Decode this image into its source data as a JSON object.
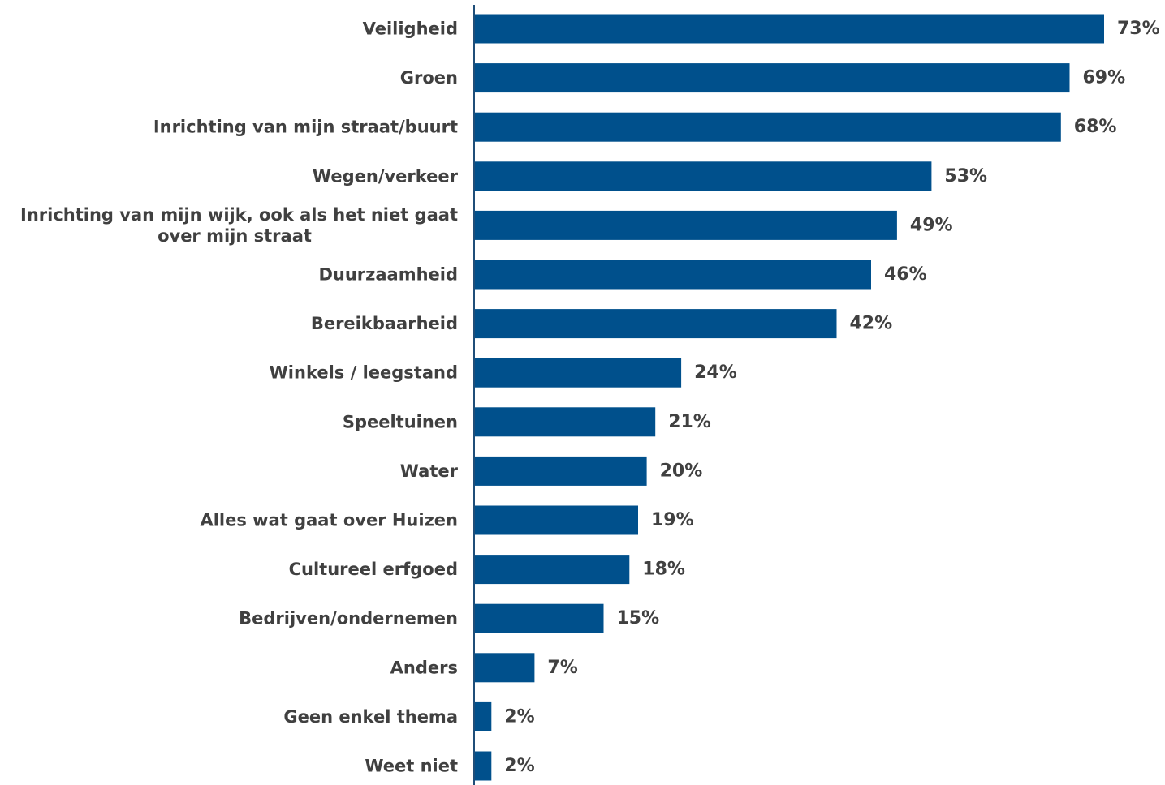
{
  "chart_data": {
    "type": "bar",
    "orientation": "horizontal",
    "categories": [
      "Veiligheid",
      "Groen",
      "Inrichting van mijn straat/buurt",
      "Wegen/verkeer",
      "Inrichting van mijn wijk, ook als het niet gaat over mijn straat",
      "Duurzaamheid",
      "Bereikbaarheid",
      "Winkels / leegstand",
      "Speeltuinen",
      "Water",
      "Alles wat gaat over Huizen",
      "Cultureel erfgoed",
      "Bedrijven/ondernemen",
      "Anders",
      "Geen enkel thema",
      "Weet niet"
    ],
    "category_lines": [
      [
        "Veiligheid"
      ],
      [
        "Groen"
      ],
      [
        "Inrichting van mijn straat/buurt"
      ],
      [
        "Wegen/verkeer"
      ],
      [
        "Inrichting van mijn wijk, ook als het niet gaat",
        "over mijn straat"
      ],
      [
        "Duurzaamheid"
      ],
      [
        "Bereikbaarheid"
      ],
      [
        "Winkels / leegstand"
      ],
      [
        "Speeltuinen"
      ],
      [
        "Water"
      ],
      [
        "Alles wat gaat over Huizen"
      ],
      [
        "Cultureel erfgoed"
      ],
      [
        "Bedrijven/ondernemen"
      ],
      [
        "Anders"
      ],
      [
        "Geen enkel thema"
      ],
      [
        "Weet niet"
      ]
    ],
    "values": [
      73,
      69,
      68,
      53,
      49,
      46,
      42,
      24,
      21,
      20,
      19,
      18,
      15,
      7,
      2,
      2
    ],
    "value_labels": [
      "73%",
      "69%",
      "68%",
      "53%",
      "49%",
      "46%",
      "42%",
      "24%",
      "21%",
      "20%",
      "19%",
      "18%",
      "15%",
      "7%",
      "2%",
      "2%"
    ],
    "unit": "%",
    "xlim": [
      0,
      73
    ],
    "grid": false,
    "legend": "none",
    "bar_color": "#00508c",
    "label_color": "#404040",
    "axis_color": "#1f4e79"
  }
}
